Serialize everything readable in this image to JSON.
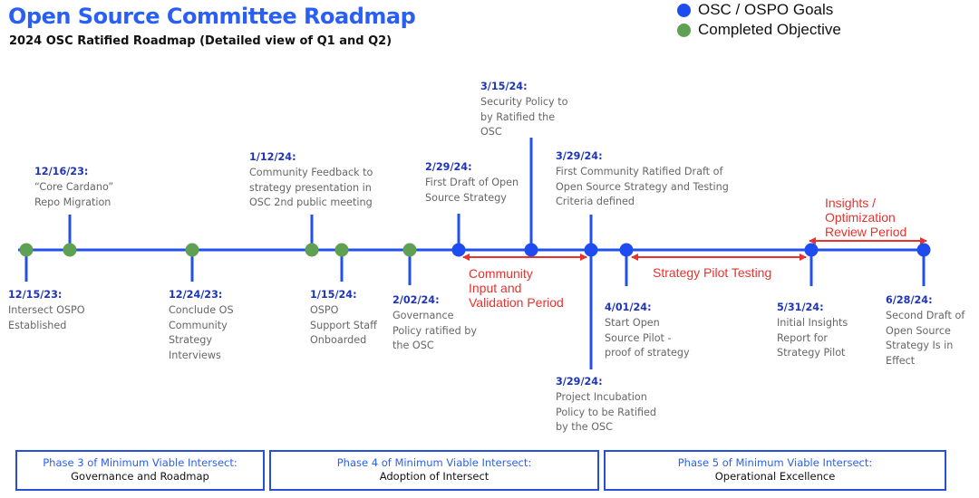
{
  "header": {
    "title": "Open Source Committee Roadmap",
    "subtitle": "2024 OSC Ratified Roadmap (Detailed view of Q1 and Q2)"
  },
  "legend": {
    "items": [
      {
        "label": "OSC / OSPO Goals",
        "color": "#1f4cf0"
      },
      {
        "label": "Completed Objective",
        "color": "#5fa052"
      }
    ]
  },
  "colors": {
    "line": "#2250ee",
    "goal": "#1f4cf0",
    "completed": "#5fa052",
    "date": "#1f35b8",
    "period": "#e8322e"
  },
  "events": [
    {
      "date": "12/15/23:",
      "text": "Intersect OSPO\nEstablished"
    },
    {
      "date": "12/16/23:",
      "text": "“Core Cardano”\nRepo Migration"
    },
    {
      "date": "12/24/23:",
      "text": "Conclude OS\nCommunity\nStrategy\nInterviews"
    },
    {
      "date": "1/12/24:",
      "text": "Community Feedback to\nstrategy presentation in\nOSC 2nd public meeting"
    },
    {
      "date": "1/15/24:",
      "text": "OSPO\nSupport Staff\nOnboarded"
    },
    {
      "date": "2/02/24:",
      "text": "Governance\nPolicy ratified by\nthe OSC"
    },
    {
      "date": "2/29/24:",
      "text": "First Draft of Open\nSource Strategy"
    },
    {
      "date": "3/15/24:",
      "text": "Security Policy to\nby Ratified the\nOSC"
    },
    {
      "date": "3/29/24:",
      "text": "First Community Ratified Draft of\nOpen Source Strategy and Testing\nCriteria defined"
    },
    {
      "date": "3/29/24:",
      "text": "Project Incubation\nPolicy to be Ratified\nby the OSC"
    },
    {
      "date": "4/01/24:",
      "text": "Start Open\nSource Pilot -\nproof of strategy"
    },
    {
      "date": "5/31/24:",
      "text": "Initial Insights\nReport for\nStrategy Pilot"
    },
    {
      "date": "6/28/24:",
      "text": "Second Draft of\nOpen Source\nStrategy Is in\nEffect"
    }
  ],
  "periods": [
    {
      "label": "Community\nInput and\nValidation Period"
    },
    {
      "label": "Strategy Pilot Testing"
    },
    {
      "label": "Insights /\nOptimization\nReview Period"
    }
  ],
  "phases": [
    {
      "title": "Phase 3 of Minimum Viable Intersect:",
      "subtitle": "Governance and Roadmap"
    },
    {
      "title": "Phase 4 of Minimum Viable Intersect:",
      "subtitle": "Adoption of Intersect"
    },
    {
      "title": "Phase 5 of Minimum Viable Intersect:",
      "subtitle": "Operational Excellence"
    }
  ]
}
